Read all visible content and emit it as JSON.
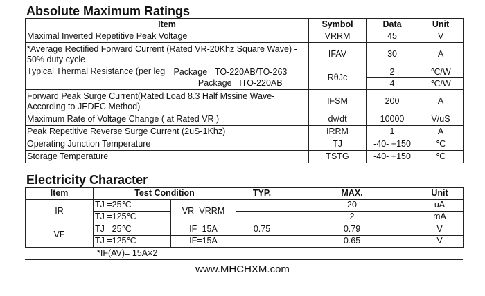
{
  "absolute_maximum_ratings": {
    "title": "Absolute Maximum Ratings",
    "headers": [
      "Item",
      "Symbol",
      "Data",
      "Unit"
    ],
    "rows": [
      {
        "item": "Maximal Inverted Repetitive  Peak Voltage",
        "symbol": "VRRM",
        "data": "45",
        "unit": "V"
      },
      {
        "item": "*Average Rectified Forward Current (Rated VR-20Khz Square Wave) - 50% duty cycle",
        "symbol": "IFAV",
        "data": "30",
        "unit": "A"
      },
      {
        "item": "Typical Thermal Resistance (per leg",
        "package1": "Package =TO-220AB/TO-263",
        "package2": "Package =ITO-220AB",
        "symbol": "RθJc",
        "data1": "2",
        "unit1": "℃/W",
        "data2": "4",
        "unit2": "℃/W"
      },
      {
        "item": "Forward Peak Surge Current(Rated Load 8.3 Half Mssine Wave-According to JEDEC Method)",
        "symbol": "IFSM",
        "data": "200",
        "unit": "A"
      },
      {
        "item": "Maximum Rate of Voltage Change ( at Rated VR )",
        "symbol": "dv/dt",
        "data": "10000",
        "unit": "V/uS"
      },
      {
        "item": "Peak Repetitive Reverse Surge Current (2uS-1Khz)",
        "symbol": "IRRM",
        "data": "1",
        "unit": "A"
      },
      {
        "item": "Operating Junction Temperature",
        "symbol": "TJ",
        "data": "-40- +150",
        "unit": "℃"
      },
      {
        "item": "Storage Temperature",
        "symbol": "TSTG",
        "data": "-40- +150",
        "unit": "℃"
      }
    ]
  },
  "electricity_character": {
    "title": "Electricity Character",
    "headers": [
      "Item",
      "Test  Condition",
      "TYP.",
      "MAX.",
      "Unit"
    ],
    "ir": {
      "item": "IR",
      "cond": "VR=VRRM",
      "rows": [
        {
          "tj": "TJ =25℃",
          "typ": "",
          "max": "20",
          "unit": "uA"
        },
        {
          "tj": "TJ =125℃",
          "typ": "",
          "max": "2",
          "unit": "mA"
        }
      ]
    },
    "vf": {
      "item": "VF",
      "rows": [
        {
          "tj": "TJ =25℃",
          "cond": "IF=15A",
          "typ": "0.75",
          "max": "0.79",
          "unit": "V"
        },
        {
          "tj": "TJ =125℃",
          "cond": "IF=15A",
          "typ": "",
          "max": "0.65",
          "unit": "V"
        }
      ]
    },
    "footnote": "*IF(AV)= 15A×2"
  },
  "footer": {
    "website": "www.MHCHXM.com"
  }
}
